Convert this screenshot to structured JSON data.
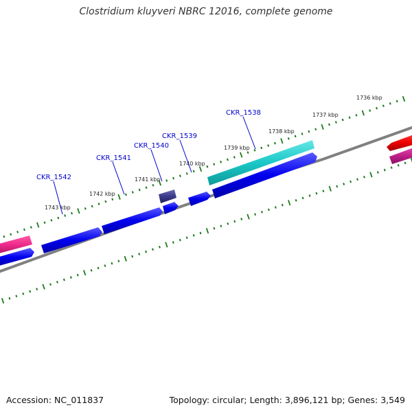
{
  "title": "Clostridium kluyveri NBRC 12016, complete genome",
  "footer": {
    "accession": "Accession: NC_011837",
    "stats": "Topology: circular; Length: 3,896,121 bp; Genes: 3,549"
  },
  "colors": {
    "backbone": "#808080",
    "tick": "#1a7a1a",
    "gene_blue": "#0000ee",
    "gene_cyan": "#1ac8c8",
    "gene_pink": "#ee2a8a",
    "gene_red": "#ee0000",
    "gene_purple": "#3a3a8a",
    "label": "#0000cc"
  },
  "scale": {
    "kbp_labels": [
      "1736 kbp",
      "1737 kbp",
      "1738 kbp",
      "1739 kbp",
      "1740 kbp",
      "1741 kbp",
      "1742 kbp",
      "1743 kbp"
    ]
  },
  "genes": [
    {
      "label": "CKR_1538",
      "color": "gene_cyan"
    },
    {
      "label": "CKR_1539",
      "color": "gene_purple"
    },
    {
      "label": "CKR_1540",
      "color": "gene_blue"
    },
    {
      "label": "CKR_1541",
      "color": "gene_blue"
    },
    {
      "label": "CKR_1542",
      "color": "gene_blue"
    }
  ]
}
